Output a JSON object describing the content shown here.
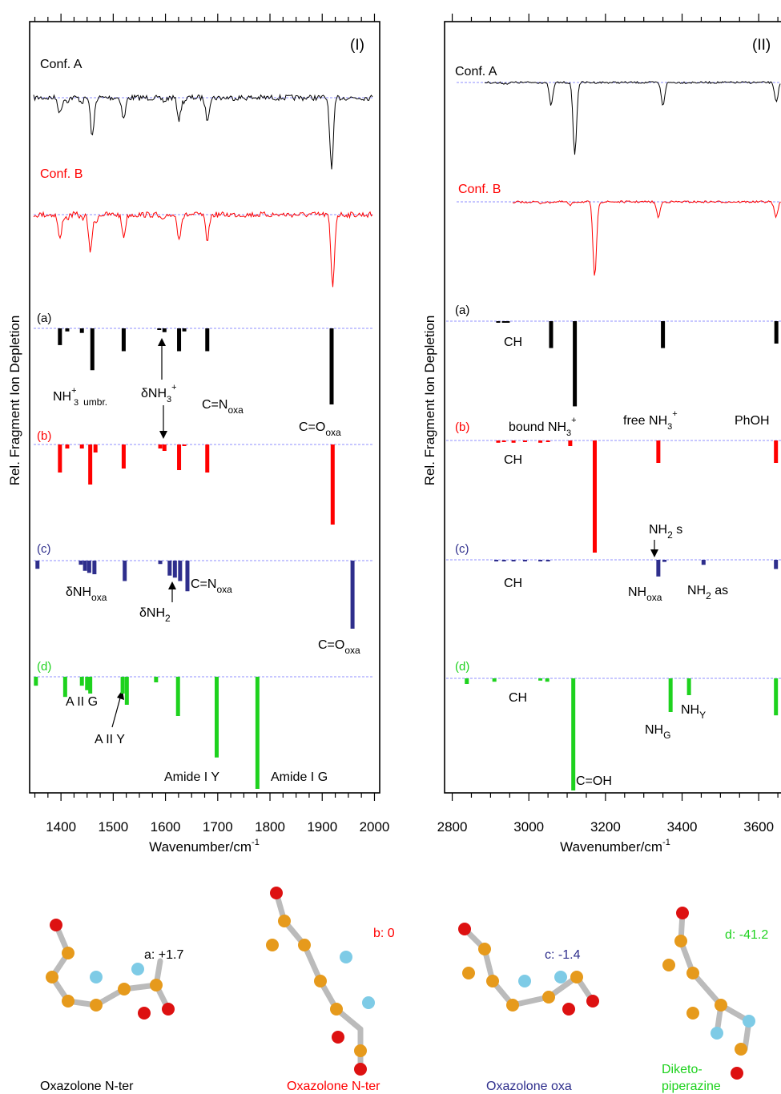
{
  "colors": {
    "a": "#000000",
    "b": "#ff0000",
    "c": "#2e2e8c",
    "d": "#1ed21e",
    "baseline": "#6b6bff"
  },
  "chart_data": [
    {
      "type": "bar",
      "panel": "(I)",
      "xlabel_main": "Wavenumber/cm",
      "xlabel_sup": "-1",
      "ylabel": "Rel. Fragment Ion Depletion",
      "xlim": [
        1340,
        2010
      ],
      "xticks": [
        "1400",
        "1500",
        "1600",
        "1700",
        "1800",
        "1900",
        "2000"
      ],
      "experimental": [
        {
          "name": "Conf. A",
          "color_key": "a"
        },
        {
          "name": "Conf. B",
          "color_key": "b"
        }
      ],
      "series": [
        {
          "name": "(a)",
          "color_key": "a",
          "x": [
            1398,
            1412,
            1440,
            1460,
            1520,
            1588,
            1598,
            1626,
            1636,
            1680,
            1918
          ],
          "y": [
            0.22,
            0.04,
            0.06,
            0.55,
            0.3,
            0.02,
            0.05,
            0.3,
            0.04,
            0.3,
            1.0
          ]
        },
        {
          "name": "(b)",
          "color_key": "b",
          "x": [
            1398,
            1412,
            1440,
            1456,
            1466,
            1520,
            1590,
            1598,
            1626,
            1636,
            1680,
            1920
          ],
          "y": [
            0.35,
            0.05,
            0.05,
            0.5,
            0.1,
            0.3,
            0.05,
            0.08,
            0.32,
            0.02,
            0.35,
            1.0
          ]
        },
        {
          "name": "(c)",
          "color_key": "c",
          "x": [
            1355,
            1438,
            1446,
            1454,
            1464,
            1522,
            1590,
            1608,
            1618,
            1628,
            1642,
            1958
          ],
          "y": [
            0.12,
            0.06,
            0.15,
            0.18,
            0.2,
            0.3,
            0.05,
            0.22,
            0.25,
            0.3,
            0.45,
            1.0
          ]
        },
        {
          "name": "(d)",
          "color_key": "d",
          "x": [
            1352,
            1408,
            1440,
            1450,
            1456,
            1518,
            1526,
            1582,
            1624,
            1698,
            1776
          ],
          "y": [
            0.08,
            0.18,
            0.08,
            0.12,
            0.15,
            0.15,
            0.25,
            0.05,
            0.35,
            0.72,
            1.0
          ]
        }
      ],
      "annotations": {
        "nh3_umbr": {
          "main": "NH",
          "sub": "3",
          "sup": "+",
          "extra": "umbr."
        },
        "dnh3": {
          "main": "δNH",
          "sub": "3",
          "sup": "+"
        },
        "cn_oxa_a": {
          "main": "C=N",
          "sub": "oxa"
        },
        "co_oxa_a": {
          "main": "C=O",
          "sub": "oxa"
        },
        "dnh_oxa": {
          "main": "δNH",
          "sub": "oxa"
        },
        "dnh2": {
          "main": "δNH",
          "sub": "2"
        },
        "cn_oxa_c": {
          "main": "C=N",
          "sub": "oxa"
        },
        "co_oxa_c": {
          "main": "C=O",
          "sub": "oxa"
        },
        "aii_g": "A II G",
        "aii_y": "A II Y",
        "amide_iy": "Amide I Y",
        "amide_ig": "Amide I G"
      }
    },
    {
      "type": "bar",
      "panel": "(II)",
      "xlabel_main": "Wavenumber/cm",
      "xlabel_sup": "-1",
      "ylabel": "Rel. Fragment Ion Depletion",
      "xlim": [
        2780,
        3700
      ],
      "xticks": [
        "2800",
        "3000",
        "3200",
        "3400",
        "3600"
      ],
      "experimental": [
        {
          "name": "Conf. A",
          "color_key": "a"
        },
        {
          "name": "Conf. B",
          "color_key": "b"
        }
      ],
      "series": [
        {
          "name": "(a)",
          "color_key": "a",
          "x": [
            2920,
            2935,
            2945,
            3058,
            3120,
            3350,
            3646
          ],
          "y": [
            0.01,
            0.01,
            0.01,
            0.3,
            0.95,
            0.3,
            0.25
          ]
        },
        {
          "name": "(b)",
          "color_key": "b",
          "x": [
            2920,
            2935,
            2960,
            2990,
            3030,
            3050,
            3108,
            3172,
            3338,
            3645
          ],
          "y": [
            0.02,
            0.01,
            0.02,
            0.01,
            0.02,
            0.01,
            0.05,
            1.0,
            0.2,
            0.2
          ]
        },
        {
          "name": "(c)",
          "color_key": "c",
          "x": [
            2915,
            2935,
            2960,
            2990,
            3030,
            3050,
            3338,
            3354,
            3456,
            3645
          ],
          "y": [
            0.02,
            0.02,
            0.02,
            0.02,
            0.02,
            0.01,
            0.4,
            0.05,
            0.12,
            0.22
          ]
        },
        {
          "name": "(d)",
          "color_key": "d",
          "x": [
            2838,
            2910,
            3030,
            3048,
            3116,
            3370,
            3418,
            3645
          ],
          "y": [
            0.05,
            0.03,
            0.02,
            0.03,
            1.0,
            0.3,
            0.15,
            0.33
          ]
        }
      ],
      "annotations": {
        "ch_a": "CH",
        "ch_b": "CH",
        "ch_c": "CH",
        "ch_d": "CH",
        "bound_nh3": {
          "main": "bound NH",
          "sub": "3",
          "sup": "+"
        },
        "free_nh3": {
          "main": "free NH",
          "sub": "3",
          "sup": "+"
        },
        "phoh": "PhOH",
        "nh2s": {
          "main": "NH",
          "sub": "2",
          "extra": " s"
        },
        "nh_oxa": {
          "main": "NH",
          "sub": "oxa"
        },
        "nh2as": {
          "main": "NH",
          "sub": "2",
          "extra": " as"
        },
        "nh_g": {
          "main": "NH",
          "sub": "G"
        },
        "nh_y": {
          "main": "NH",
          "sub": "Y"
        },
        "c_oh": "C=OH"
      }
    }
  ],
  "structures": [
    {
      "energy": "a: +1.7",
      "caption": "Oxazolone N-ter",
      "color_key": "a"
    },
    {
      "energy": "b: 0",
      "caption": "Oxazolone N-ter",
      "color_key": "b"
    },
    {
      "energy": "c: -1.4",
      "caption": "Oxazolone oxa",
      "color_key": "c"
    },
    {
      "energy": "d: -41.2",
      "caption": "Diketo-",
      "caption2": "piperazine",
      "color_key": "d"
    }
  ]
}
